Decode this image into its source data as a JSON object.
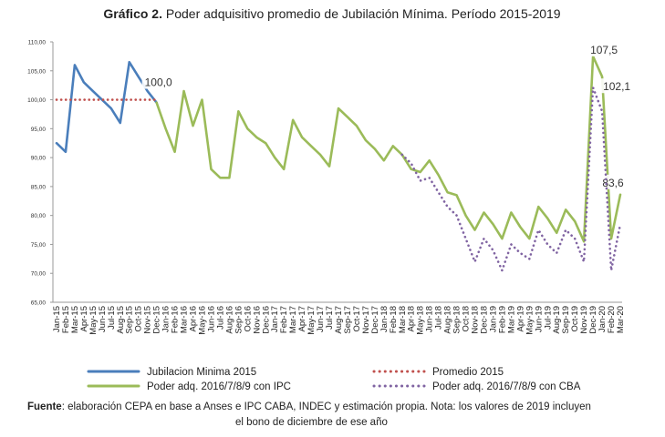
{
  "chart_data": {
    "type": "line",
    "title_bold": "Gráfico 2.",
    "title": "Poder adquisitivo promedio de Jubilación Mínima. Período 2015-2019",
    "categories": [
      "Jan-15",
      "Feb-15",
      "Mar-15",
      "Apr-15",
      "May-15",
      "Jun-15",
      "Jul-15",
      "Aug-15",
      "Sep-15",
      "Oct-15",
      "Nov-15",
      "Dec-15",
      "Jan-16",
      "Feb-16",
      "Mar-16",
      "Apr-16",
      "May-16",
      "Jun-16",
      "Jul-16",
      "Aug-16",
      "Sep-16",
      "Oct-16",
      "Nov-16",
      "Dec-16",
      "Jan-17",
      "Feb-17",
      "Mar-17",
      "Apr-17",
      "May-17",
      "Jun-17",
      "Jul-17",
      "Aug-17",
      "Sep-17",
      "Oct-17",
      "Nov-17",
      "Dec-17",
      "Jan-18",
      "Feb-18",
      "Mar-18",
      "Apr-18",
      "May-18",
      "Jun-18",
      "Jul-18",
      "Aug-18",
      "Sep-18",
      "Oct-18",
      "Nov-18",
      "Dec-18",
      "Jan-19",
      "Feb-19",
      "Mar-19",
      "Apr-19",
      "May-19",
      "Jun-19",
      "Jul-19",
      "Aug-19",
      "Sep-19",
      "Oct-19",
      "Nov-19",
      "Dec-19",
      "Jan-20",
      "Feb-20",
      "Mar-20"
    ],
    "series": [
      {
        "name": "Jubilacion Minima 2015",
        "color": "#4a7ebb",
        "style": "solid",
        "values": [
          92.5,
          91,
          106,
          103,
          101.5,
          100,
          98.5,
          96,
          106.5,
          104,
          101.5,
          99.5,
          null,
          null,
          null,
          null,
          null,
          null,
          null,
          null,
          null,
          null,
          null,
          null,
          null,
          null,
          null,
          null,
          null,
          null,
          null,
          null,
          null,
          null,
          null,
          null,
          null,
          null,
          null,
          null,
          null,
          null,
          null,
          null,
          null,
          null,
          null,
          null,
          null,
          null,
          null,
          null,
          null,
          null,
          null,
          null,
          null,
          null,
          null,
          null,
          null,
          null,
          null
        ]
      },
      {
        "name": "Promedio 2015",
        "color": "#c0504d",
        "style": "dotted",
        "values": [
          100,
          100,
          100,
          100,
          100,
          100,
          100,
          100,
          100,
          100,
          100,
          100,
          null,
          null,
          null,
          null,
          null,
          null,
          null,
          null,
          null,
          null,
          null,
          null,
          null,
          null,
          null,
          null,
          null,
          null,
          null,
          null,
          null,
          null,
          null,
          null,
          null,
          null,
          null,
          null,
          null,
          null,
          null,
          null,
          null,
          null,
          null,
          null,
          null,
          null,
          null,
          null,
          null,
          null,
          null,
          null,
          null,
          null,
          null,
          null,
          null,
          null,
          null
        ],
        "value_labels": [
          null,
          null,
          null,
          null,
          null,
          null,
          null,
          null,
          null,
          null,
          null,
          "100,0",
          null,
          null,
          null,
          null,
          null,
          null,
          null,
          null,
          null,
          null,
          null,
          null,
          null,
          null,
          null,
          null,
          null,
          null,
          null,
          null,
          null,
          null,
          null,
          null,
          null,
          null,
          null,
          null,
          null,
          null,
          null,
          null,
          null,
          null,
          null,
          null,
          null,
          null,
          null,
          null,
          null,
          null,
          null,
          null,
          null,
          null,
          null,
          null,
          null,
          null,
          null
        ]
      },
      {
        "name": "Poder adq. 2016/7/8/9 con IPC",
        "color": "#9bbb59",
        "style": "solid",
        "values": [
          null,
          null,
          null,
          null,
          null,
          null,
          null,
          null,
          null,
          null,
          null,
          99.5,
          95,
          91,
          101.5,
          95.5,
          100,
          88,
          86.5,
          86.5,
          98,
          95,
          93.5,
          92.5,
          90,
          88,
          96.5,
          93.5,
          92,
          90.5,
          88.5,
          98.5,
          97,
          95.5,
          93,
          91.5,
          89.5,
          92,
          90.5,
          88,
          87.5,
          89.5,
          87,
          84,
          83.5,
          80,
          77.5,
          80.5,
          78.5,
          76,
          80.5,
          78,
          76,
          81.5,
          79.5,
          77,
          81,
          79,
          75.5,
          107.5,
          104,
          76,
          83.6
        ],
        "value_labels": [
          null,
          null,
          null,
          null,
          null,
          null,
          null,
          null,
          null,
          null,
          null,
          null,
          null,
          null,
          null,
          null,
          null,
          null,
          null,
          null,
          null,
          null,
          null,
          null,
          null,
          null,
          null,
          null,
          null,
          null,
          null,
          null,
          null,
          null,
          null,
          null,
          null,
          null,
          null,
          null,
          null,
          null,
          null,
          null,
          null,
          null,
          null,
          null,
          null,
          null,
          null,
          null,
          null,
          null,
          null,
          null,
          null,
          null,
          null,
          "107,5",
          null,
          null,
          "83,6"
        ]
      },
      {
        "name": "Poder adq. 2016/7/8/9 con CBA",
        "color": "#8064a2",
        "style": "dotted",
        "values": [
          null,
          null,
          null,
          null,
          null,
          null,
          null,
          null,
          null,
          null,
          null,
          null,
          null,
          null,
          null,
          null,
          null,
          null,
          null,
          null,
          null,
          null,
          null,
          null,
          null,
          null,
          null,
          null,
          null,
          null,
          null,
          null,
          null,
          null,
          null,
          null,
          null,
          null,
          90.5,
          89,
          86,
          86.5,
          84,
          81.5,
          80,
          76,
          72,
          76,
          74,
          70.5,
          75,
          73.5,
          72.5,
          77.5,
          75,
          73.5,
          77.5,
          76,
          72,
          102.1,
          98,
          70.5,
          78.5
        ],
        "value_labels": [
          null,
          null,
          null,
          null,
          null,
          null,
          null,
          null,
          null,
          null,
          null,
          null,
          null,
          null,
          null,
          null,
          null,
          null,
          null,
          null,
          null,
          null,
          null,
          null,
          null,
          null,
          null,
          null,
          null,
          null,
          null,
          null,
          null,
          null,
          null,
          null,
          null,
          null,
          null,
          null,
          null,
          null,
          null,
          null,
          null,
          null,
          null,
          null,
          null,
          null,
          null,
          null,
          null,
          null,
          null,
          null,
          null,
          null,
          null,
          "102,1",
          null,
          null,
          null
        ]
      }
    ],
    "ylim": [
      65,
      110
    ],
    "yticks": [
      {
        "value": 65,
        "label": "65,00"
      },
      {
        "value": 70,
        "label": "70,00"
      },
      {
        "value": 75,
        "label": "75,00"
      },
      {
        "value": 80,
        "label": "80,00"
      },
      {
        "value": 85,
        "label": "85,00"
      },
      {
        "value": 90,
        "label": "90,00"
      },
      {
        "value": 95,
        "label": "95,00"
      },
      {
        "value": 100,
        "label": "100,00"
      },
      {
        "value": 105,
        "label": "105,00"
      },
      {
        "value": 110,
        "label": "110,00"
      }
    ],
    "grid": false,
    "source_label": "Fuente",
    "source": [
      ": elaboración CEPA en base a Anses e IPC CABA, INDEC y estimación propia. Nota: los valores de 2019 incluyen",
      "el bono de diciembre de ese año"
    ]
  }
}
